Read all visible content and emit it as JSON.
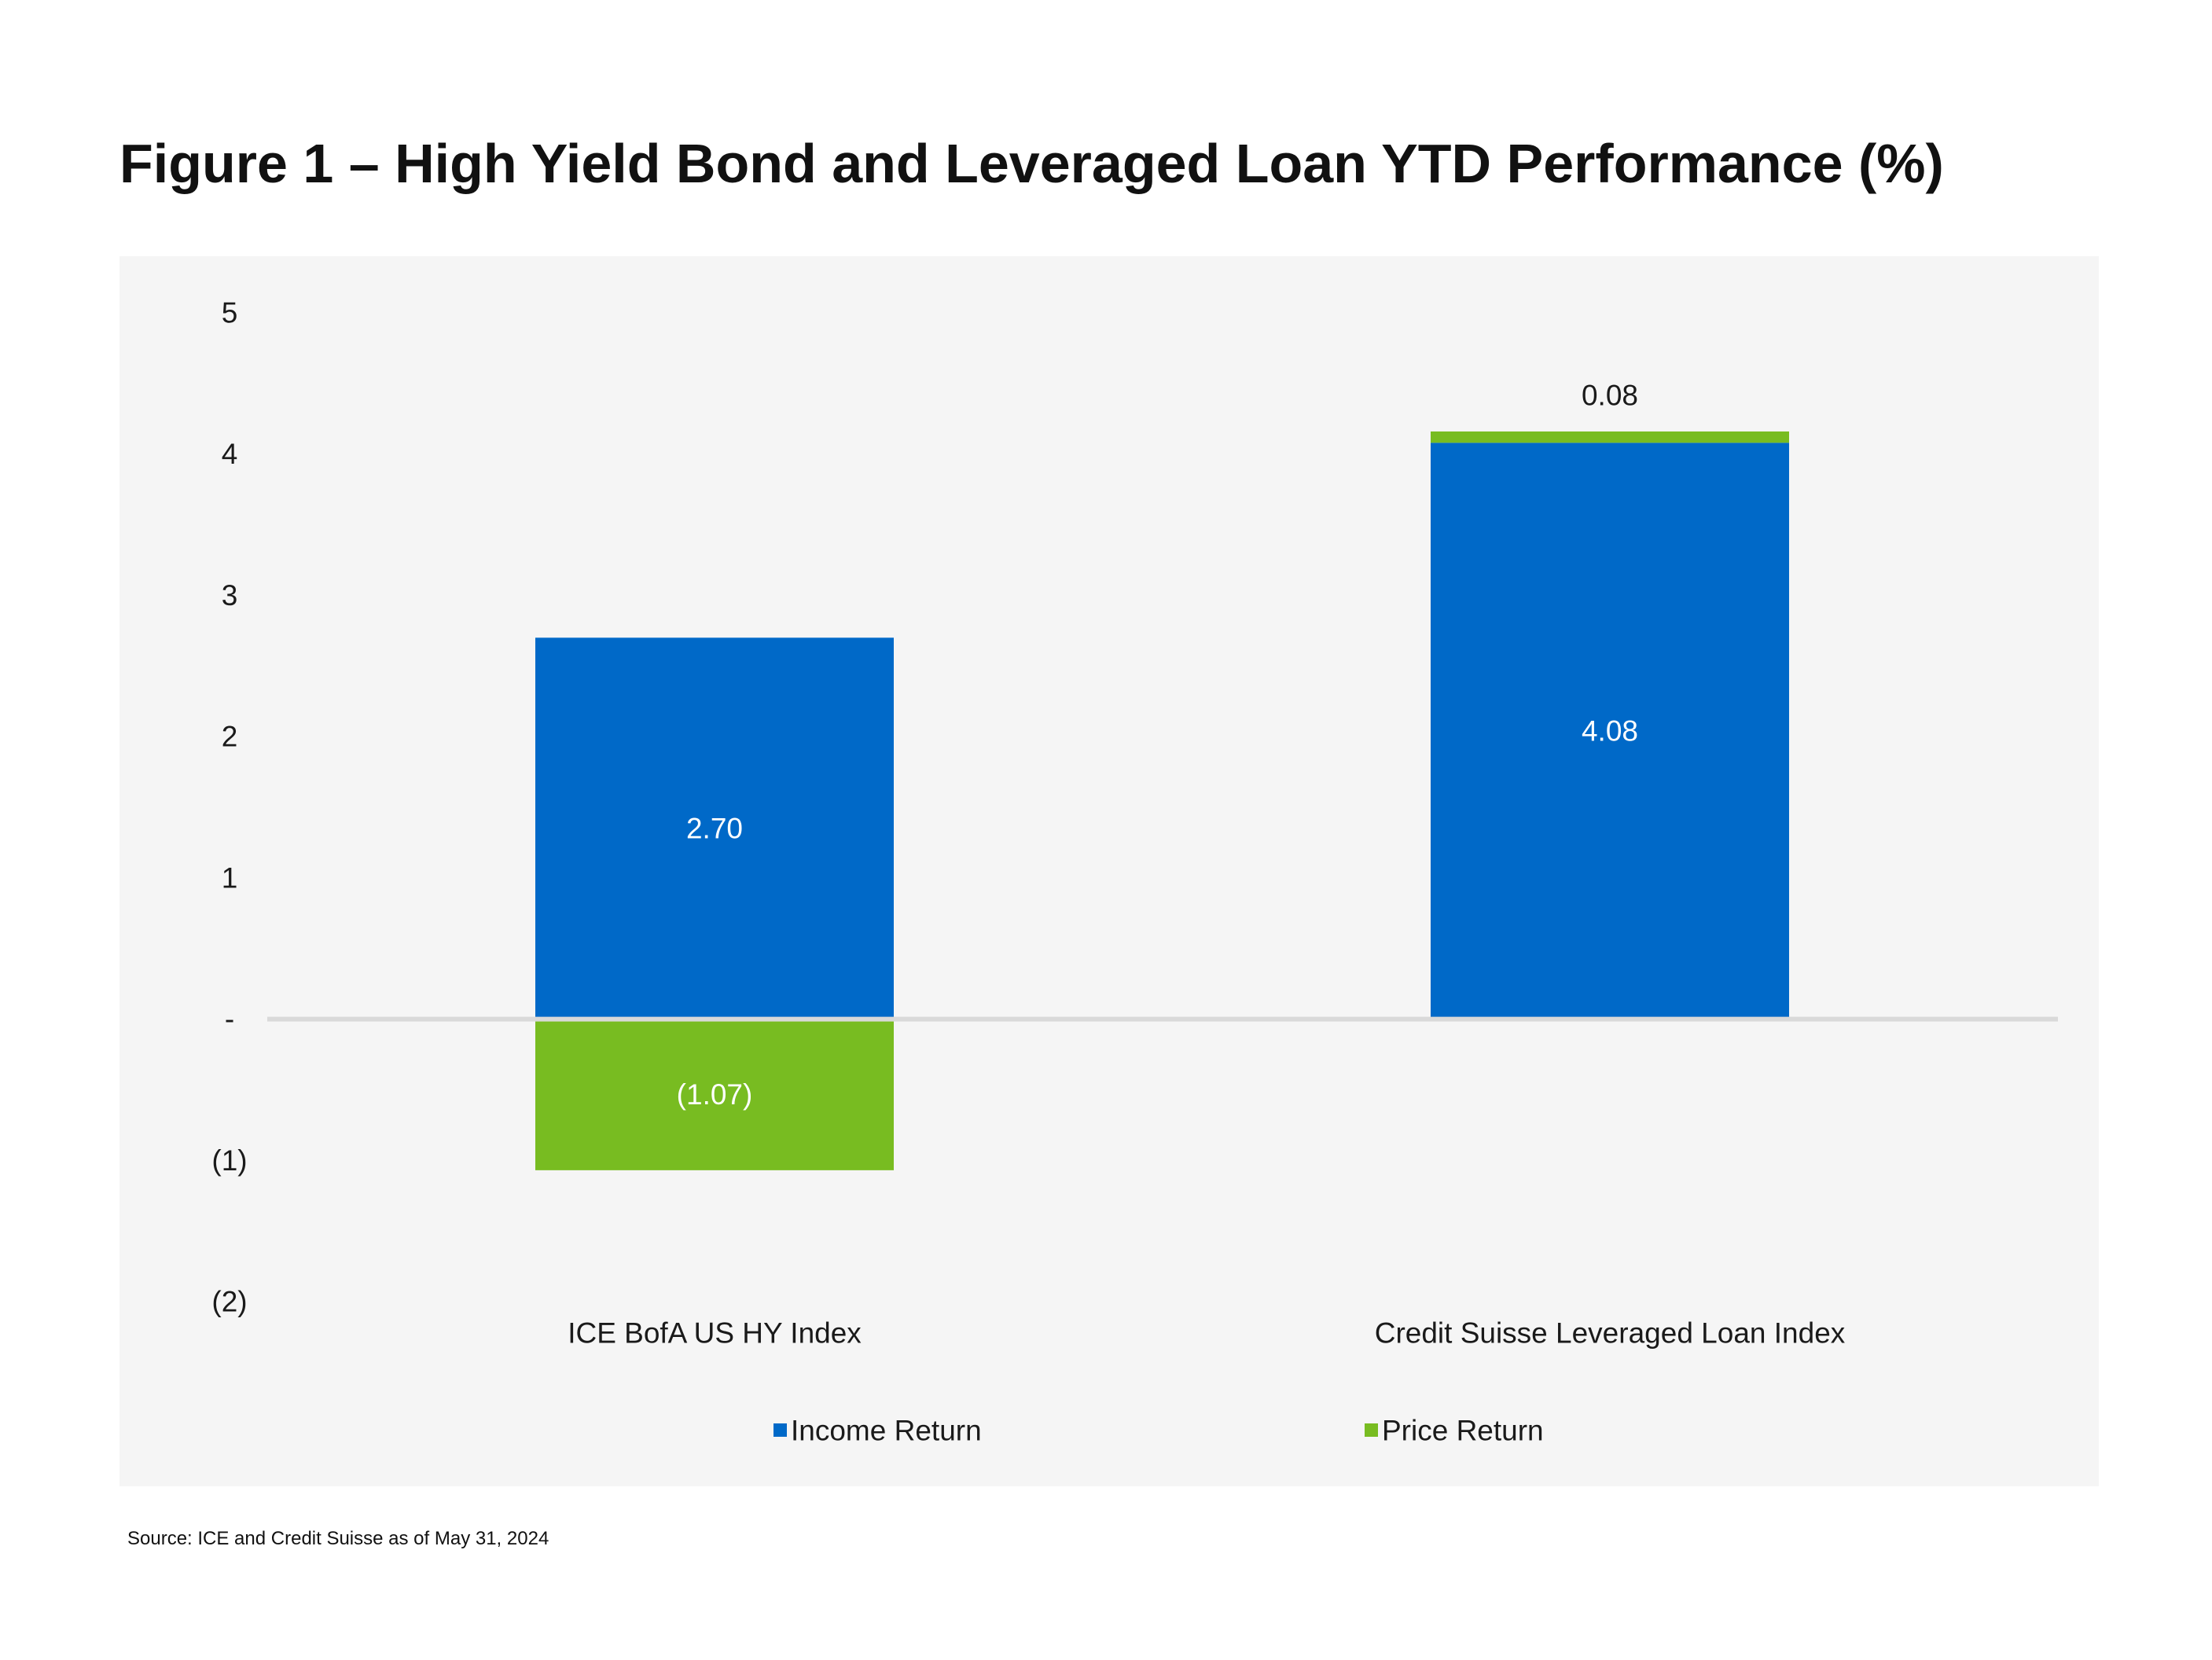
{
  "title": "Figure 1 – High Yield Bond and Leveraged Loan YTD Performance (%)",
  "source": "Source: ICE and Credit Suisse as of May 31, 2024",
  "colors": {
    "income": "#0069c8",
    "price": "#78bc21",
    "zero_line": "#d9d9d9",
    "panel": "#f5f5f5",
    "label_dark": "#1a1a1a",
    "label_light": "#ffffff"
  },
  "chart_data": {
    "type": "bar",
    "stacked": true,
    "categories": [
      "ICE BofA US HY Index",
      "Credit Suisse Leveraged Loan Index"
    ],
    "series": [
      {
        "name": "Income Return",
        "values": [
          2.7,
          4.08
        ],
        "labels": [
          "2.70",
          "4.08"
        ],
        "color": "#0069c8"
      },
      {
        "name": "Price Return",
        "values": [
          -1.07,
          0.08
        ],
        "labels": [
          "(1.07)",
          "0.08"
        ],
        "color": "#78bc21"
      }
    ],
    "ylim": [
      -2,
      5
    ],
    "yticks": [
      5,
      4,
      3,
      2,
      1,
      0,
      -1,
      -2
    ],
    "ytick_labels": [
      "5",
      "4",
      "3",
      "2",
      "1",
      "-",
      "(1)",
      "(2)"
    ],
    "xlabel": "",
    "ylabel": "",
    "grid": false,
    "legend_position": "bottom"
  }
}
